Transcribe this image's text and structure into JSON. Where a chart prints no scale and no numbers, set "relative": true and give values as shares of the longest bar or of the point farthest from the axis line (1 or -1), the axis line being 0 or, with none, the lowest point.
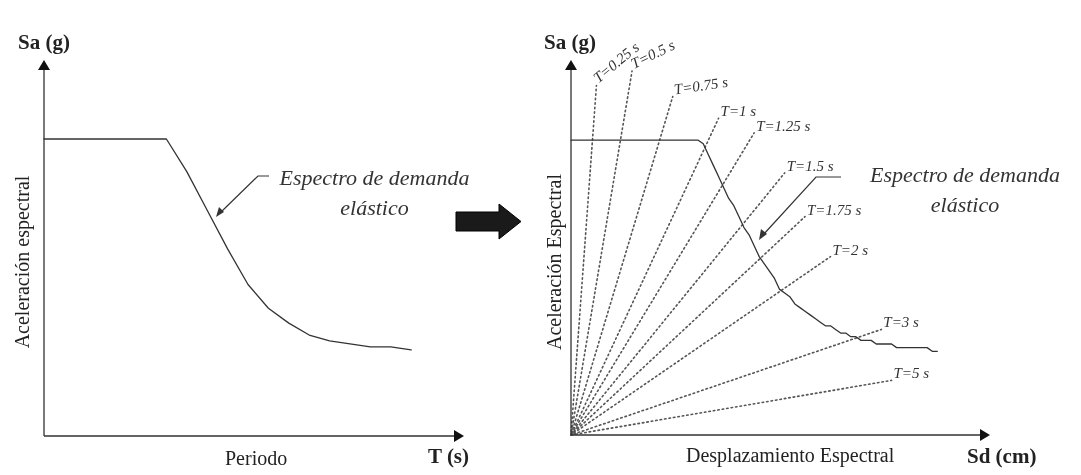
{
  "chart_data": [
    {
      "type": "line",
      "relative": true,
      "marker": "none",
      "tick_labels": false,
      "xlabel": "Periodo",
      "ylabel": "Aceleración espectral",
      "annotations": [
        "Sa (g)",
        "T (s)",
        "Espectro de demanda elástico"
      ],
      "categories": [
        null,
        null,
        null,
        null,
        null,
        null,
        null,
        null,
        null,
        null,
        null,
        null,
        null,
        null,
        null,
        null,
        null,
        null,
        null,
        null,
        null
      ],
      "series": [
        {
          "color": "#333333",
          "values": [
            1,
            1,
            1,
            1,
            1,
            1,
            1,
            0.89,
            0.76,
            0.63,
            0.51,
            0.43,
            0.38,
            0.34,
            0.32,
            0.31,
            0.3,
            0.3,
            0.29,
            null,
            null
          ]
        }
      ]
    },
    {
      "type": "line",
      "relative": true,
      "marker": "none",
      "tick_labels": false,
      "xlabel": "Desplazamiento Espectral",
      "ylabel": "Aceleración Espectral",
      "annotations": [
        "Sa (g)",
        "Sd (cm)",
        "Espectro de demanda elástico"
      ],
      "categories": [
        null,
        null,
        null,
        null,
        null,
        null,
        null,
        null,
        null,
        null,
        null,
        null,
        null,
        null,
        null,
        null,
        null,
        null,
        null,
        null,
        null,
        null,
        null,
        null,
        null,
        null,
        null,
        null,
        null,
        null,
        null,
        null,
        null,
        null,
        null,
        null,
        null,
        null,
        null,
        null,
        null,
        null,
        null,
        null,
        null,
        null,
        null,
        null,
        null,
        null,
        null,
        null,
        null,
        null,
        null,
        null,
        null,
        null,
        null,
        null,
        null,
        null,
        null,
        null,
        null,
        null,
        null,
        null,
        null,
        null,
        null,
        null,
        null,
        null,
        null,
        null,
        null,
        null,
        null,
        null,
        null
      ],
      "series": [
        {
          "color": "#333333",
          "values": [
            0.81,
            0.81,
            0.81,
            0.81,
            0.81,
            0.81,
            0.81,
            0.81,
            0.81,
            0.81,
            0.81,
            0.81,
            0.81,
            0.81,
            0.81,
            0.81,
            0.81,
            0.81,
            0.81,
            0.81,
            0.81,
            0.81,
            0.81,
            0.81,
            0.81,
            0.81,
            0.8,
            0.77,
            0.74,
            0.71,
            0.68,
            0.65,
            0.63,
            0.6,
            0.57,
            0.55,
            0.52,
            0.49,
            0.47,
            0.45,
            0.43,
            0.4,
            0.39,
            0.38,
            0.36,
            0.35,
            0.34,
            0.33,
            0.32,
            0.31,
            0.3,
            0.3,
            0.29,
            0.28,
            0.28,
            0.27,
            0.27,
            0.26,
            0.26,
            0.26,
            0.25,
            0.25,
            0.25,
            0.25,
            0.24,
            0.24,
            0.24,
            0.24,
            0.24,
            0.24,
            0.24,
            0.23,
            0.23,
            null,
            null,
            null,
            null,
            null,
            null,
            null,
            null
          ]
        },
        {
          "name": "T=0.25 s",
          "color": "#555555",
          "line_style": "dotted",
          "values": [
            0,
            null,
            null,
            null,
            null,
            0.96,
            null,
            null,
            null,
            null,
            null,
            null,
            null,
            null,
            null,
            null,
            null,
            null,
            null,
            null,
            null,
            null,
            null,
            null,
            null,
            null,
            null,
            null,
            null,
            null,
            null,
            null,
            null,
            null,
            null,
            null,
            null,
            null,
            null,
            null,
            null,
            null,
            null,
            null,
            null,
            null,
            null,
            null,
            null,
            null,
            null,
            null,
            null,
            null,
            null,
            null,
            null,
            null,
            null,
            null,
            null,
            null,
            null,
            null,
            null,
            null,
            null,
            null,
            null,
            null,
            null,
            null,
            null,
            null,
            null,
            null,
            null,
            null,
            null,
            null,
            null
          ]
        },
        {
          "name": "T=0.5 s",
          "color": "#555555",
          "line_style": "dotted",
          "values": [
            0,
            null,
            null,
            null,
            null,
            null,
            null,
            null,
            null,
            null,
            null,
            null,
            1,
            null,
            null,
            null,
            null,
            null,
            null,
            null,
            null,
            null,
            null,
            null,
            null,
            null,
            null,
            null,
            null,
            null,
            null,
            null,
            null,
            null,
            null,
            null,
            null,
            null,
            null,
            null,
            null,
            null,
            null,
            null,
            null,
            null,
            null,
            null,
            null,
            null,
            null,
            null,
            null,
            null,
            null,
            null,
            null,
            null,
            null,
            null,
            null,
            null,
            null,
            null,
            null,
            null,
            null,
            null,
            null,
            null,
            null,
            null,
            null,
            null,
            null,
            null,
            null,
            null,
            null,
            null,
            null
          ]
        },
        {
          "name": "T=0.75 s",
          "color": "#555555",
          "line_style": "dotted",
          "values": [
            0,
            null,
            null,
            null,
            null,
            null,
            null,
            null,
            null,
            null,
            null,
            null,
            null,
            null,
            null,
            null,
            null,
            null,
            null,
            null,
            0.93,
            null,
            null,
            null,
            null,
            null,
            null,
            null,
            null,
            null,
            null,
            null,
            null,
            null,
            null,
            null,
            null,
            null,
            null,
            null,
            null,
            null,
            null,
            null,
            null,
            null,
            null,
            null,
            null,
            null,
            null,
            null,
            null,
            null,
            null,
            null,
            null,
            null,
            null,
            null,
            null,
            null,
            null,
            null,
            null,
            null,
            null,
            null,
            null,
            null,
            null,
            null,
            null,
            null,
            null,
            null,
            null,
            null,
            null,
            null,
            null
          ]
        },
        {
          "name": "T=1 s",
          "color": "#555555",
          "line_style": "dotted",
          "values": [
            0,
            null,
            null,
            null,
            null,
            null,
            null,
            null,
            null,
            null,
            null,
            null,
            null,
            null,
            null,
            null,
            null,
            null,
            null,
            null,
            null,
            null,
            null,
            null,
            null,
            null,
            null,
            null,
            null,
            0.87,
            null,
            null,
            null,
            null,
            null,
            null,
            null,
            null,
            null,
            null,
            null,
            null,
            null,
            null,
            null,
            null,
            null,
            null,
            null,
            null,
            null,
            null,
            null,
            null,
            null,
            null,
            null,
            null,
            null,
            null,
            null,
            null,
            null,
            null,
            null,
            null,
            null,
            null,
            null,
            null,
            null,
            null,
            null,
            null,
            null,
            null,
            null,
            null,
            null,
            null,
            null
          ]
        },
        {
          "name": "T=1.25 s",
          "color": "#555555",
          "line_style": "dotted",
          "values": [
            0,
            null,
            null,
            null,
            null,
            null,
            null,
            null,
            null,
            null,
            null,
            null,
            null,
            null,
            null,
            null,
            null,
            null,
            null,
            null,
            null,
            null,
            null,
            null,
            null,
            null,
            null,
            null,
            null,
            null,
            null,
            null,
            null,
            null,
            null,
            null,
            0.83,
            null,
            null,
            null,
            null,
            null,
            null,
            null,
            null,
            null,
            null,
            null,
            null,
            null,
            null,
            null,
            null,
            null,
            null,
            null,
            null,
            null,
            null,
            null,
            null,
            null,
            null,
            null,
            null,
            null,
            null,
            null,
            null,
            null,
            null,
            null,
            null,
            null,
            null,
            null,
            null,
            null,
            null,
            null,
            null
          ]
        },
        {
          "name": "T=1.5 s",
          "color": "#555555",
          "line_style": "dotted",
          "values": [
            0,
            null,
            null,
            null,
            null,
            null,
            null,
            null,
            null,
            null,
            null,
            null,
            null,
            null,
            null,
            null,
            null,
            null,
            null,
            null,
            null,
            null,
            null,
            null,
            null,
            null,
            null,
            null,
            null,
            null,
            null,
            null,
            null,
            null,
            null,
            null,
            null,
            null,
            null,
            null,
            null,
            null,
            0.72,
            null,
            null,
            null,
            null,
            null,
            null,
            null,
            null,
            null,
            null,
            null,
            null,
            null,
            null,
            null,
            null,
            null,
            null,
            null,
            null,
            null,
            null,
            null,
            null,
            null,
            null,
            null,
            null,
            null,
            null,
            null,
            null,
            null,
            null,
            null,
            null,
            null,
            null
          ]
        },
        {
          "name": "T=1.75 s",
          "color": "#555555",
          "line_style": "dotted",
          "values": [
            0,
            null,
            null,
            null,
            null,
            null,
            null,
            null,
            null,
            null,
            null,
            null,
            null,
            null,
            null,
            null,
            null,
            null,
            null,
            null,
            null,
            null,
            null,
            null,
            null,
            null,
            null,
            null,
            null,
            null,
            null,
            null,
            null,
            null,
            null,
            null,
            null,
            null,
            null,
            null,
            null,
            null,
            null,
            null,
            null,
            null,
            0.6,
            null,
            null,
            null,
            null,
            null,
            null,
            null,
            null,
            null,
            null,
            null,
            null,
            null,
            null,
            null,
            null,
            null,
            null,
            null,
            null,
            null,
            null,
            null,
            null,
            null,
            null,
            null,
            null,
            null,
            null,
            null,
            null,
            null,
            null
          ]
        },
        {
          "name": "T=2 s",
          "color": "#555555",
          "line_style": "dotted",
          "values": [
            0,
            null,
            null,
            null,
            null,
            null,
            null,
            null,
            null,
            null,
            null,
            null,
            null,
            null,
            null,
            null,
            null,
            null,
            null,
            null,
            null,
            null,
            null,
            null,
            null,
            null,
            null,
            null,
            null,
            null,
            null,
            null,
            null,
            null,
            null,
            null,
            null,
            null,
            null,
            null,
            null,
            null,
            null,
            null,
            null,
            null,
            null,
            null,
            null,
            null,
            null,
            0.49,
            null,
            null,
            null,
            null,
            null,
            null,
            null,
            null,
            null,
            null,
            null,
            null,
            null,
            null,
            null,
            null,
            null,
            null,
            null,
            null,
            null,
            null,
            null,
            null,
            null,
            null,
            null,
            null,
            null
          ]
        },
        {
          "name": "T=3 s",
          "color": "#555555",
          "line_style": "dotted",
          "values": [
            0,
            null,
            null,
            null,
            null,
            null,
            null,
            null,
            null,
            null,
            null,
            null,
            null,
            null,
            null,
            null,
            null,
            null,
            null,
            null,
            null,
            null,
            null,
            null,
            null,
            null,
            null,
            null,
            null,
            null,
            null,
            null,
            null,
            null,
            null,
            null,
            null,
            null,
            null,
            null,
            null,
            null,
            null,
            null,
            null,
            null,
            null,
            null,
            null,
            null,
            null,
            null,
            null,
            null,
            null,
            null,
            null,
            null,
            null,
            null,
            null,
            0.29,
            null,
            null,
            null,
            null,
            null,
            null,
            null,
            null,
            null,
            null,
            null,
            null,
            null,
            null,
            null,
            null,
            null,
            null,
            null
          ]
        },
        {
          "name": "T=5 s",
          "color": "#555555",
          "line_style": "dotted",
          "values": [
            0,
            null,
            null,
            null,
            null,
            null,
            null,
            null,
            null,
            null,
            null,
            null,
            null,
            null,
            null,
            null,
            null,
            null,
            null,
            null,
            null,
            null,
            null,
            null,
            null,
            null,
            null,
            null,
            null,
            null,
            null,
            null,
            null,
            null,
            null,
            null,
            null,
            null,
            null,
            null,
            null,
            null,
            null,
            null,
            null,
            null,
            null,
            null,
            null,
            null,
            null,
            null,
            null,
            null,
            null,
            null,
            null,
            null,
            null,
            null,
            null,
            null,
            null,
            0.15,
            null,
            null,
            null,
            null,
            null,
            null,
            null,
            null,
            null,
            null,
            null,
            null,
            null,
            null,
            null,
            null,
            null
          ]
        }
      ]
    }
  ]
}
